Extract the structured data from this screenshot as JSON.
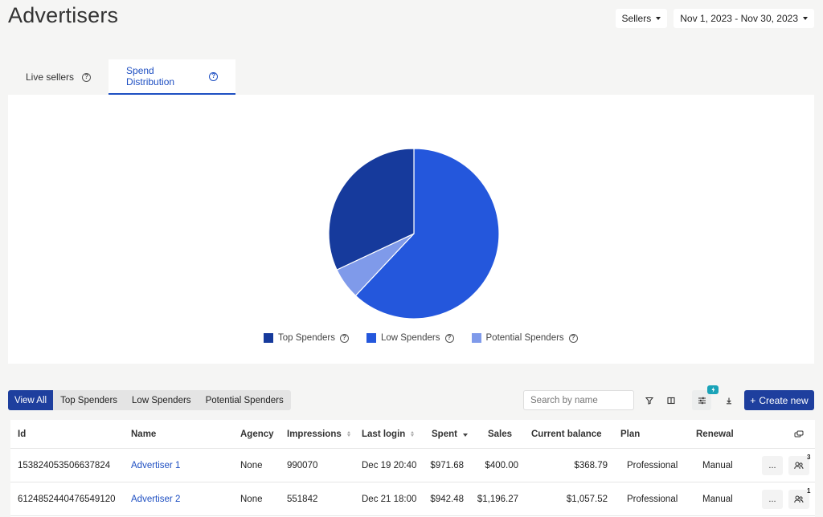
{
  "header": {
    "title": "Advertisers",
    "sellers_label": "Sellers",
    "date_range": "Nov 1, 2023 - Nov 30, 2023"
  },
  "tabs": [
    {
      "label": "Live sellers",
      "active": false
    },
    {
      "label": "Spend Distribution",
      "active": true
    }
  ],
  "chart_data": {
    "type": "pie",
    "slices": [
      {
        "name": "Low Spenders",
        "value": 62,
        "color": "#2457dc"
      },
      {
        "name": "Potential Spenders",
        "value": 6,
        "color": "#7f9aea"
      },
      {
        "name": "Top Spenders",
        "value": 32,
        "color": "#163a9c"
      }
    ],
    "legend": [
      "Top Spenders",
      "Low Spenders",
      "Potential Spenders"
    ],
    "legend_position": "bottom"
  },
  "filters": {
    "buttons": [
      "View All",
      "Top Spenders",
      "Low Spenders",
      "Potential Spenders"
    ],
    "active": "View All"
  },
  "search": {
    "placeholder": "Search by name"
  },
  "toolbar": {
    "badge_icon": "lightning-icon",
    "create_label": "Create new"
  },
  "table": {
    "columns": {
      "id": "Id",
      "name": "Name",
      "agency": "Agency",
      "impressions": "Impressions",
      "last_login": "Last login",
      "spent": "Spent",
      "sales": "Sales",
      "current_balance": "Current balance",
      "plan": "Plan",
      "renewal": "Renewal"
    },
    "rows": [
      {
        "id": "153824053506637824",
        "name": "Advertiser 1",
        "agency": "None",
        "impressions": "990070",
        "last_login": "Dec 19 20:40",
        "spent": "$971.68",
        "sales": "$400.00",
        "current_balance": "$368.79",
        "plan": "Professional",
        "renewal": "Manual",
        "more": "...",
        "user_count": "3"
      },
      {
        "id": "6124852440476549120",
        "name": "Advertiser 2",
        "agency": "None",
        "impressions": "551842",
        "last_login": "Dec 21 18:00",
        "spent": "$942.48",
        "sales": "$1,196.27",
        "current_balance": "$1,057.52",
        "plan": "Professional",
        "renewal": "Manual",
        "more": "...",
        "user_count": "1"
      }
    ]
  },
  "colors": {
    "accent": "#1e4fc2",
    "primary_button": "#1e3f9e",
    "badge": "#1aa3b8"
  }
}
